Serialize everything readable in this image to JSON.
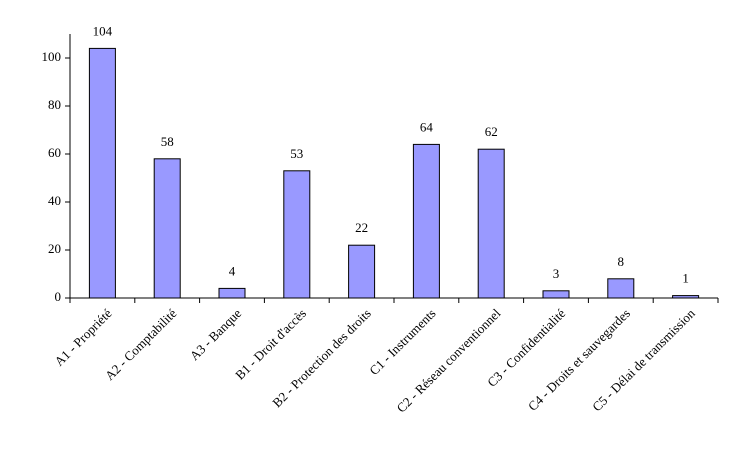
{
  "chart_data": {
    "type": "bar",
    "categories": [
      "A1 - Propriété",
      "A2 - Comptabilité",
      "A3 - Banque",
      "B1 - Droit d'accès",
      "B2 - Protection des droits",
      "C1 - Instruments",
      "C2 - Réseau conventionnel",
      "C3 - Confidentialité",
      "C4 - Droits et sauvegardes",
      "C5 - Délai de transmission"
    ],
    "values": [
      104,
      58,
      4,
      53,
      22,
      64,
      62,
      3,
      8,
      1
    ],
    "color": "#9999ff",
    "ylim": [
      0,
      110
    ],
    "yticks": [
      0,
      20,
      40,
      60,
      80,
      100
    ],
    "grid": false
  }
}
